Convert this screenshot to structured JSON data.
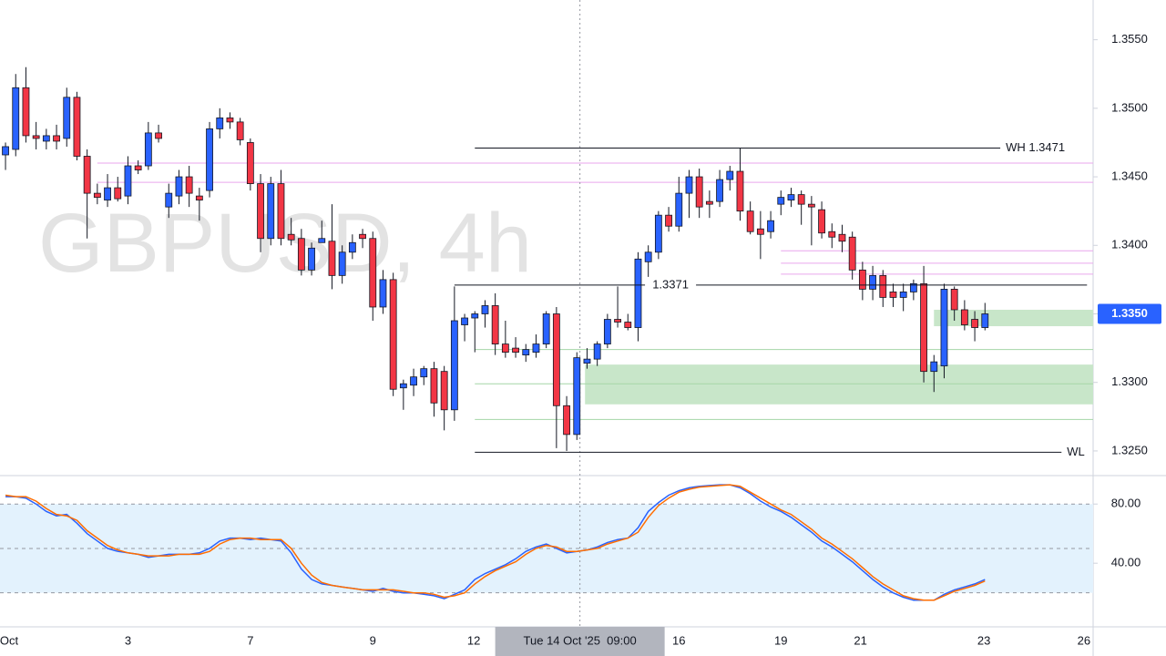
{
  "chart_data": [
    {
      "type": "candlestick",
      "watermark": "GBPUSD, 4h",
      "up_color": "#2962ff",
      "down_color": "#f23645",
      "open": [
        1.3466,
        1.347,
        1.3515,
        1.348,
        1.3476,
        1.348,
        1.3478,
        1.3508,
        1.3465,
        1.3438,
        1.3433,
        1.3442,
        1.3436,
        1.3458,
        1.3458,
        1.3482,
        1.3428,
        1.3436,
        1.345,
        1.3436,
        1.344,
        1.3485,
        1.3493,
        1.349,
        1.3475,
        1.3445,
        1.3405,
        1.3445,
        1.3408,
        1.3405,
        1.3382,
        1.3402,
        1.3403,
        1.3378,
        1.3395,
        1.3408,
        1.3405,
        1.3355,
        1.3375,
        1.3296,
        1.3298,
        1.3304,
        1.331,
        1.3308,
        1.328,
        1.3342,
        1.3347,
        1.335,
        1.3356,
        1.3328,
        1.3325,
        1.332,
        1.3322,
        1.3328,
        1.335,
        1.3283,
        1.3262,
        1.3314,
        1.3317,
        1.3328,
        1.3346,
        1.3344,
        1.334,
        1.3388,
        1.3395,
        1.3422,
        1.3414,
        1.3438,
        1.345,
        1.3432,
        1.3432,
        1.3448,
        1.3454,
        1.3425,
        1.3412,
        1.341,
        1.343,
        1.3433,
        1.3437,
        1.343,
        1.3426,
        1.341,
        1.3408,
        1.3406,
        1.3382,
        1.3368,
        1.3378,
        1.3366,
        1.3362,
        1.3366,
        1.3372,
        1.3308,
        1.3312,
        1.3368,
        1.3353,
        1.3346,
        1.334
      ],
      "high": [
        1.3475,
        1.3525,
        1.353,
        1.349,
        1.3485,
        1.3488,
        1.3515,
        1.3512,
        1.347,
        1.3445,
        1.3452,
        1.345,
        1.3465,
        1.3462,
        1.349,
        1.3488,
        1.3445,
        1.3455,
        1.3458,
        1.3442,
        1.349,
        1.35,
        1.3497,
        1.3493,
        1.3478,
        1.3452,
        1.345,
        1.3455,
        1.342,
        1.3412,
        1.3402,
        1.3418,
        1.343,
        1.34,
        1.3408,
        1.3412,
        1.341,
        1.3382,
        1.338,
        1.3302,
        1.331,
        1.3312,
        1.3315,
        1.3312,
        1.337,
        1.335,
        1.3352,
        1.336,
        1.3365,
        1.3345,
        1.3333,
        1.3328,
        1.3335,
        1.3352,
        1.3355,
        1.329,
        1.3322,
        1.3325,
        1.333,
        1.335,
        1.337,
        1.335,
        1.3395,
        1.34,
        1.3425,
        1.3428,
        1.345,
        1.3455,
        1.3456,
        1.344,
        1.3455,
        1.3458,
        1.3471,
        1.3432,
        1.3425,
        1.3425,
        1.344,
        1.3442,
        1.344,
        1.3436,
        1.3432,
        1.3416,
        1.3415,
        1.341,
        1.3388,
        1.3385,
        1.3382,
        1.3372,
        1.3372,
        1.3375,
        1.3385,
        1.332,
        1.3372,
        1.337,
        1.336,
        1.3352,
        1.3358
      ],
      "low": [
        1.3455,
        1.3465,
        1.3475,
        1.347,
        1.347,
        1.347,
        1.3472,
        1.3462,
        1.3405,
        1.343,
        1.3428,
        1.3432,
        1.343,
        1.3452,
        1.3455,
        1.3475,
        1.342,
        1.343,
        1.3428,
        1.3418,
        1.3435,
        1.3478,
        1.3485,
        1.3473,
        1.344,
        1.3395,
        1.34,
        1.34,
        1.34,
        1.3378,
        1.3378,
        1.3402,
        1.3368,
        1.3372,
        1.339,
        1.3398,
        1.3345,
        1.335,
        1.329,
        1.328,
        1.329,
        1.3298,
        1.3275,
        1.3265,
        1.3272,
        1.333,
        1.3322,
        1.334,
        1.332,
        1.3318,
        1.3318,
        1.3315,
        1.3318,
        1.3325,
        1.3252,
        1.325,
        1.3258,
        1.331,
        1.3312,
        1.3325,
        1.334,
        1.3338,
        1.333,
        1.3372,
        1.339,
        1.341,
        1.341,
        1.342,
        1.342,
        1.342,
        1.3428,
        1.344,
        1.3418,
        1.3408,
        1.339,
        1.3405,
        1.3422,
        1.3428,
        1.3415,
        1.34,
        1.3405,
        1.3398,
        1.3395,
        1.3375,
        1.336,
        1.336,
        1.3355,
        1.3355,
        1.3352,
        1.336,
        1.33,
        1.3293,
        1.3303,
        1.3345,
        1.3338,
        1.333,
        1.3338
      ],
      "close": [
        1.3472,
        1.3515,
        1.348,
        1.3478,
        1.348,
        1.3476,
        1.3508,
        1.3465,
        1.3438,
        1.3435,
        1.3442,
        1.3434,
        1.3458,
        1.3455,
        1.3482,
        1.3478,
        1.3438,
        1.345,
        1.3438,
        1.3433,
        1.3485,
        1.3493,
        1.349,
        1.3477,
        1.3445,
        1.3405,
        1.3445,
        1.3405,
        1.3404,
        1.3382,
        1.3398,
        1.3405,
        1.3378,
        1.3395,
        1.3402,
        1.3405,
        1.3355,
        1.3375,
        1.3295,
        1.3299,
        1.3304,
        1.331,
        1.3285,
        1.328,
        1.3345,
        1.3347,
        1.335,
        1.3356,
        1.3328,
        1.3322,
        1.3322,
        1.3324,
        1.3328,
        1.335,
        1.3283,
        1.3262,
        1.3318,
        1.3317,
        1.3328,
        1.3346,
        1.3344,
        1.334,
        1.339,
        1.3395,
        1.3422,
        1.3414,
        1.3438,
        1.345,
        1.3428,
        1.343,
        1.3448,
        1.3454,
        1.3425,
        1.341,
        1.3408,
        1.3418,
        1.3435,
        1.3437,
        1.343,
        1.3428,
        1.3409,
        1.3406,
        1.3403,
        1.3382,
        1.3368,
        1.3378,
        1.3362,
        1.3362,
        1.3366,
        1.3372,
        1.3308,
        1.3315,
        1.3368,
        1.3353,
        1.3342,
        1.334,
        1.335
      ],
      "xlim": [
        -0.54,
        106.6
      ],
      "ylim": [
        1.3232,
        1.3579
      ],
      "xticks": [
        {
          "value": 0,
          "label": "Oct"
        },
        {
          "value": 12,
          "label": "3"
        },
        {
          "value": 24,
          "label": "7"
        },
        {
          "value": 36,
          "label": "9"
        },
        {
          "value": 45.9,
          "label": "12"
        },
        {
          "value": 66,
          "label": "16"
        },
        {
          "value": 76,
          "label": "19"
        },
        {
          "value": 83.8,
          "label": "21"
        },
        {
          "value": 95.9,
          "label": "23"
        },
        {
          "value": 105.7,
          "label": "26"
        }
      ],
      "yticks": [
        {
          "value": 1.325,
          "label": "1.3250"
        },
        {
          "value": 1.33,
          "label": "1.3300"
        },
        {
          "value": 1.335,
          "label": "1.3350"
        },
        {
          "value": 1.34,
          "label": "1.3400"
        },
        {
          "value": 1.345,
          "label": "1.3450"
        },
        {
          "value": 1.35,
          "label": "1.3500"
        },
        {
          "value": 1.355,
          "label": "1.3550"
        }
      ],
      "last_price": {
        "value": 1.335,
        "label": "1.3350"
      },
      "levels": [
        {
          "name": "WH 1.3471",
          "value": 1.3471
        },
        {
          "value": 1.3371
        },
        {
          "name": "WL",
          "value": 1.3249
        }
      ],
      "pink_levels": [
        1.346,
        1.3446,
        1.3396,
        1.3387,
        1.3379
      ],
      "pink_color": "#e9a6ee",
      "zones": [
        {
          "low": 1.3341,
          "high": 1.3353
        },
        {
          "low": 1.3284,
          "high": 1.3313
        }
      ],
      "zone_color": "#c8e6c9",
      "green_levels": [
        1.3324,
        1.3299,
        1.3273
      ],
      "green_color": "#a5d6a7",
      "crosshair": {
        "x": 56.3,
        "label": "Tue 14 Oct '25  09:00"
      }
    },
    {
      "type": "line",
      "ylim": [
        -3,
        98
      ],
      "yticks": [
        {
          "value": 80,
          "label": "80.00"
        },
        {
          "value": 40,
          "label": "40.00"
        }
      ],
      "bands": [
        20,
        50,
        80
      ],
      "band_color": "#e3f2fd",
      "series": [
        {
          "color": "#2962ff",
          "values": [
            85,
            85,
            84,
            80,
            75,
            72,
            73,
            67,
            60,
            55,
            50,
            48,
            47,
            46,
            44,
            45,
            46,
            46,
            46,
            47,
            50,
            55,
            57,
            57,
            56,
            57,
            56,
            55,
            47,
            36,
            29,
            26,
            25,
            24,
            23,
            22,
            21,
            23,
            21,
            20,
            20,
            19,
            18,
            16,
            19,
            22,
            29,
            33,
            36,
            39,
            43,
            48,
            51,
            53,
            50,
            47,
            48,
            49,
            51,
            54,
            56,
            57,
            64,
            75,
            81,
            86,
            89,
            91,
            92,
            92.5,
            93,
            93,
            91,
            87,
            82,
            78,
            75,
            71,
            66,
            61,
            55,
            51,
            46,
            41,
            35,
            29,
            24,
            20,
            17,
            15,
            15,
            15,
            19,
            22,
            24,
            26,
            29
          ]
        },
        {
          "color": "#ff6d00",
          "values": [
            86,
            85,
            85,
            82,
            77,
            73,
            72,
            69,
            62,
            57,
            52,
            49,
            47,
            46,
            45,
            45,
            45,
            46,
            46,
            46,
            48,
            53,
            56,
            57,
            57,
            56,
            56,
            56,
            50,
            40,
            32,
            27,
            25,
            24,
            23,
            22,
            22,
            22,
            22,
            21,
            20,
            20,
            19,
            17,
            18,
            20,
            26,
            31,
            35,
            38,
            41,
            46,
            50,
            52,
            51,
            48,
            48,
            49,
            50,
            53,
            55,
            57,
            61,
            71,
            79,
            84,
            88,
            90,
            91.5,
            92,
            92.5,
            93,
            92,
            88,
            84,
            80,
            76,
            73,
            68,
            63,
            57,
            53,
            48,
            43,
            37,
            31,
            26,
            22,
            18,
            16,
            15,
            15,
            18,
            21,
            23,
            25,
            28
          ]
        }
      ]
    }
  ]
}
